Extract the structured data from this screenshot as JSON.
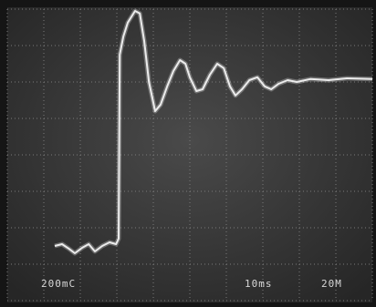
{
  "chart_data": {
    "type": "line",
    "annotations": [
      "200mC",
      "10ms",
      "20M"
    ],
    "xlim": [
      0,
      10
    ],
    "ylim": [
      0,
      8
    ],
    "xticks": [
      0,
      1,
      2,
      3,
      4,
      5,
      6,
      7,
      8,
      9,
      10
    ],
    "yticks": [
      0,
      1,
      2,
      3,
      4,
      5,
      6,
      7,
      8
    ],
    "grid": true,
    "color": "#ececec",
    "x": [
      1.3,
      1.5,
      1.68,
      1.85,
      2.05,
      2.23,
      2.4,
      2.6,
      2.8,
      2.98,
      3.05,
      3.08,
      3.18,
      3.3,
      3.5,
      3.63,
      3.75,
      3.88,
      4.05,
      4.2,
      4.38,
      4.55,
      4.73,
      4.88,
      5.0,
      5.18,
      5.35,
      5.55,
      5.75,
      5.93,
      6.1,
      6.25,
      6.43,
      6.63,
      6.85,
      7.05,
      7.23,
      7.43,
      7.68,
      7.93,
      8.3,
      8.8,
      9.3,
      10
    ],
    "values": [
      1.5,
      1.55,
      1.43,
      1.3,
      1.45,
      1.55,
      1.35,
      1.5,
      1.6,
      1.55,
      1.7,
      6.75,
      7.25,
      7.63,
      7.95,
      7.88,
      7.13,
      6.0,
      5.2,
      5.38,
      5.88,
      6.3,
      6.6,
      6.5,
      6.13,
      5.75,
      5.8,
      6.2,
      6.5,
      6.38,
      5.88,
      5.63,
      5.8,
      6.05,
      6.13,
      5.88,
      5.8,
      5.95,
      6.05,
      6.0,
      6.08,
      6.05,
      6.1,
      6.08
    ]
  }
}
